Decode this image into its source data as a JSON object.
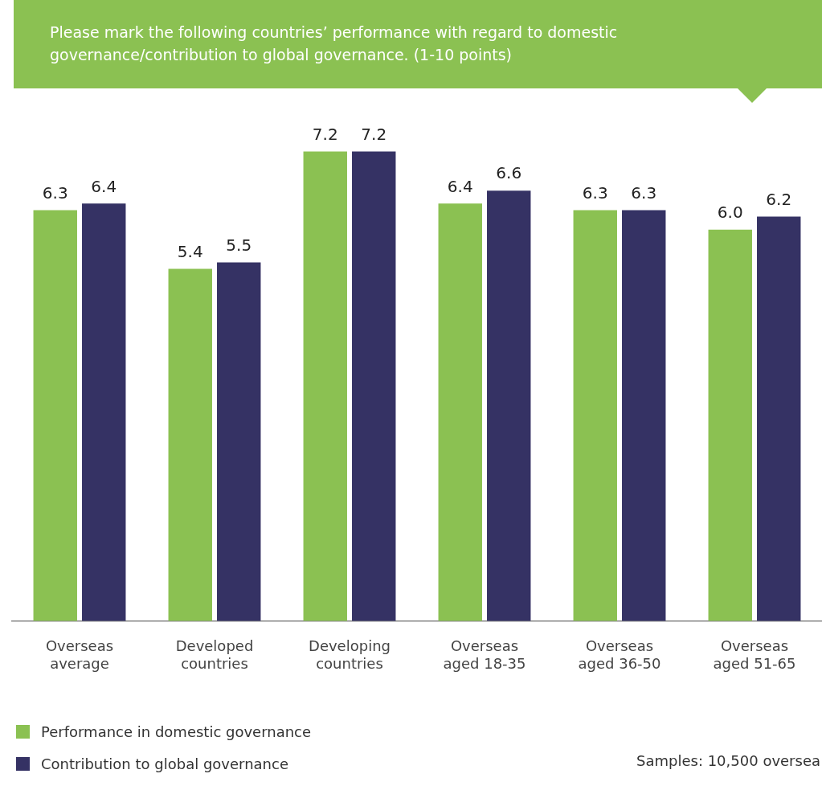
{
  "chart_data": {
    "type": "bar",
    "title": "Please mark the following countries’ performance with regard to domestic governance/contribution to global governance. (1-10 points)",
    "categories": [
      "Overseas average",
      "Developed countries",
      "Developing countries",
      "Overseas aged 18-35",
      "Overseas aged 36-50",
      "Overseas aged 51-65"
    ],
    "series": [
      {
        "name": "Performance in domestic governance",
        "color": "#8bc152",
        "values": [
          6.3,
          5.4,
          7.2,
          6.4,
          6.3,
          6.0
        ],
        "value_labels": [
          "6.3",
          "5.4",
          "7.2",
          "6.4",
          "6.3",
          "6.0"
        ]
      },
      {
        "name": "Contribution to global governance",
        "color": "#353264",
        "values": [
          6.4,
          5.5,
          7.2,
          6.6,
          6.3,
          6.2
        ],
        "value_labels": [
          "6.4",
          "5.5",
          "7.2",
          "6.6",
          "6.3",
          "6.2"
        ]
      }
    ],
    "legend": "bottom left",
    "grid": false,
    "annotations": [
      "Samples: 10,500 oversea"
    ]
  }
}
